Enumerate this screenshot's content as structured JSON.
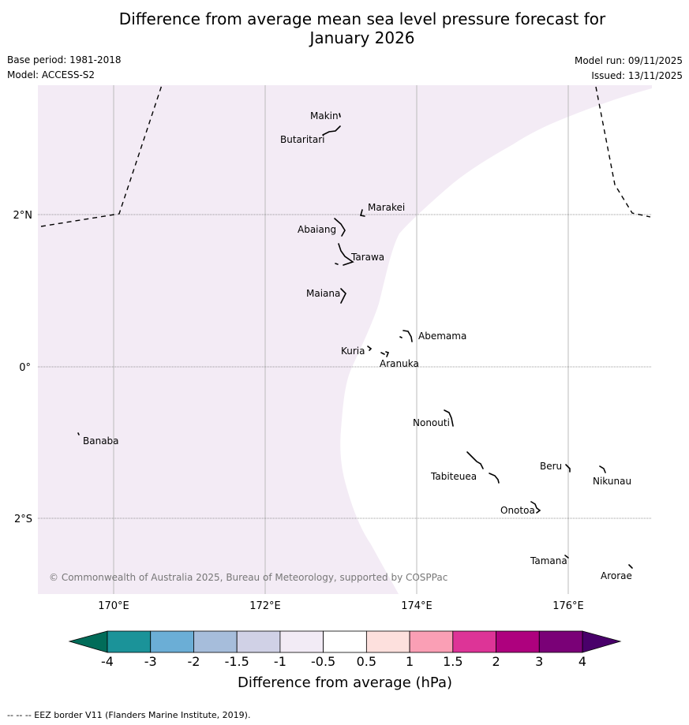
{
  "title_line1": "Difference from average mean sea level pressure forecast for",
  "title_line2": "January 2026",
  "base_period": "Base period: 1981-2018",
  "model": "Model: ACCESS-S2",
  "model_run": "Model run: 09/11/2025",
  "issued": "Issued: 13/11/2025",
  "copyright": "© Commonwealth of Australia 2025, Bureau of Meteorology, supported by COSPPac",
  "lon_labels": [
    "170°E",
    "172°E",
    "174°E",
    "176°E"
  ],
  "lat_labels": [
    "2°N",
    "0°",
    "2°S"
  ],
  "islands": {
    "makin": "Makin",
    "butaritari": "Butaritari",
    "marakei": "Marakei",
    "abaiang": "Abaiang",
    "tarawa": "Tarawa",
    "maiana": "Maiana",
    "abemama": "Abemama",
    "kuria": "Kuria",
    "aranuka": "Aranuka",
    "banaba": "Banaba",
    "nonouti": "Nonouti",
    "tabiteuea": "Tabiteuea",
    "beru": "Beru",
    "nikunau": "Nikunau",
    "onotoa": "Onotoa",
    "tamana": "Tamana",
    "arorae": "Arorae"
  },
  "legend": {
    "title": "Difference from average (hPa)",
    "ticks": [
      "-4",
      "-3",
      "-2",
      "-1.5",
      "-1",
      "-0.5",
      "0.5",
      "1",
      "1.5",
      "2",
      "3",
      "4"
    ],
    "colors": [
      "#1b9399",
      "#6baed6",
      "#a6bddb",
      "#d0d1e6",
      "#f2ebf5",
      "#ffffff",
      "#fde0dd",
      "#fa9fb5",
      "#dd3497",
      "#ae017e",
      "#7a0177"
    ],
    "low_color": "#016c59",
    "high_color": "#49006a"
  },
  "footnote": "-- -- -- EEZ border V11 (Flanders Marine Institute, 2019).",
  "colors": {
    "shaded_area": "#f3ebf5",
    "grid": "#bbbbbb"
  }
}
